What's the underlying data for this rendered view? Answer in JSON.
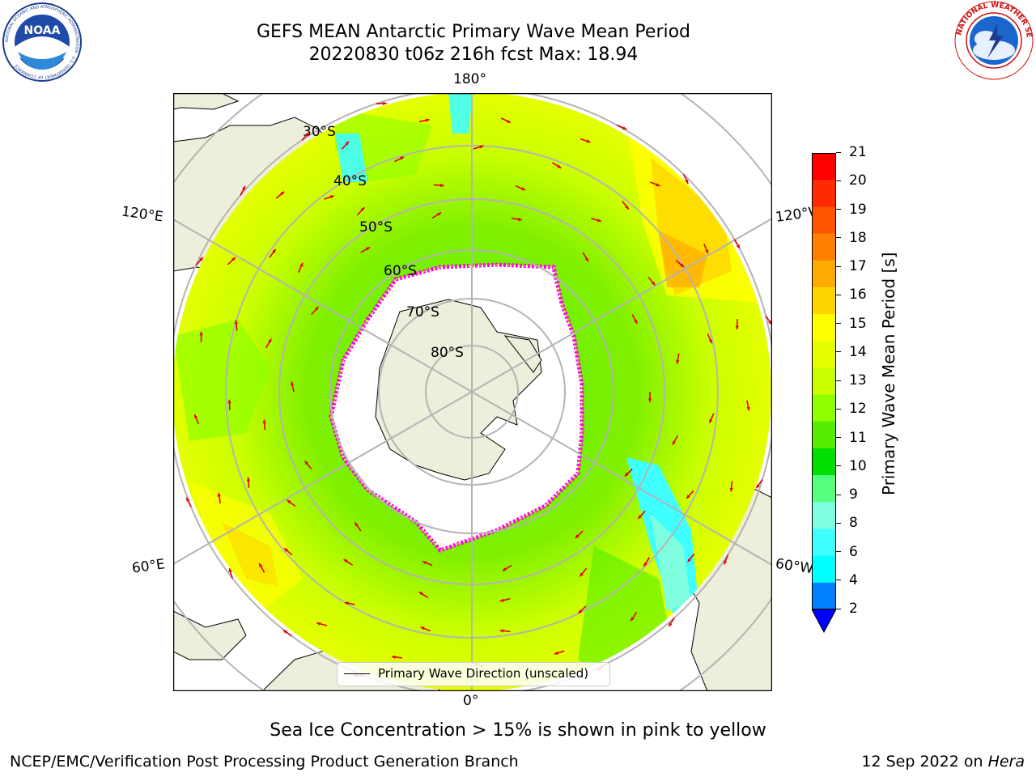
{
  "header": {
    "title_line1": "GEFS MEAN Antarctic Primary Wave Mean Period",
    "title_line2": "20220830 t06z 216h fcst   Max: 18.94"
  },
  "logos": {
    "left": {
      "icon": "noaa-logo-icon",
      "text": "NOAA",
      "ring_text": "NATIONAL OCEANIC AND ATMOSPHERIC ADMINISTRATION · U.S. DEPARTMENT OF COMMERCE"
    },
    "right": {
      "icon": "nws-logo-icon",
      "ring_text": "NATIONAL WEATHER SERVICE"
    }
  },
  "map": {
    "projection": "south-polar-stereographic",
    "longitude_labels": {
      "top": "180°",
      "bottom": "0°",
      "left_upper": "120°E",
      "left_lower": "60°E",
      "right_upper": "120°W",
      "right_lower": "60°W"
    },
    "latitude_labels": [
      "30°S",
      "40°S",
      "50°S",
      "60°S",
      "70°S",
      "80°S"
    ],
    "legend": "Primary Wave Direction (unscaled)",
    "colors": {
      "land": "#eeeedc",
      "grid": "#b4b4b4",
      "arrow": "#e60000",
      "ice_edge": "#ff00ff"
    }
  },
  "colorbar": {
    "label": "Primary Wave Mean Period [s]",
    "ticks": [
      "21",
      "20",
      "19",
      "18",
      "17",
      "16",
      "15",
      "14",
      "13",
      "12",
      "11",
      "10",
      "9",
      "8",
      "6",
      "4",
      "2"
    ],
    "bands": [
      {
        "color": "#fe0000"
      },
      {
        "color": "#ff2a00"
      },
      {
        "color": "#ff5500"
      },
      {
        "color": "#ff8000"
      },
      {
        "color": "#ffaa00"
      },
      {
        "color": "#ffd500"
      },
      {
        "color": "#ffff00"
      },
      {
        "color": "#e5ff00"
      },
      {
        "color": "#caff00"
      },
      {
        "color": "#90ff00"
      },
      {
        "color": "#55ee00"
      },
      {
        "color": "#00e000"
      },
      {
        "color": "#55ff80"
      },
      {
        "color": "#80ffe0"
      },
      {
        "color": "#40ffff"
      },
      {
        "color": "#00ffff"
      },
      {
        "color": "#0080ff"
      }
    ],
    "extend_color": "#0000ff"
  },
  "caption": "Sea Ice Concentration > 15% is shown in pink to yellow",
  "footer": {
    "left": "NCEP/EMC/Verification Post Processing Product Generation Branch",
    "right_date": "12 Sep 2022 on ",
    "right_machine": "Hera"
  }
}
